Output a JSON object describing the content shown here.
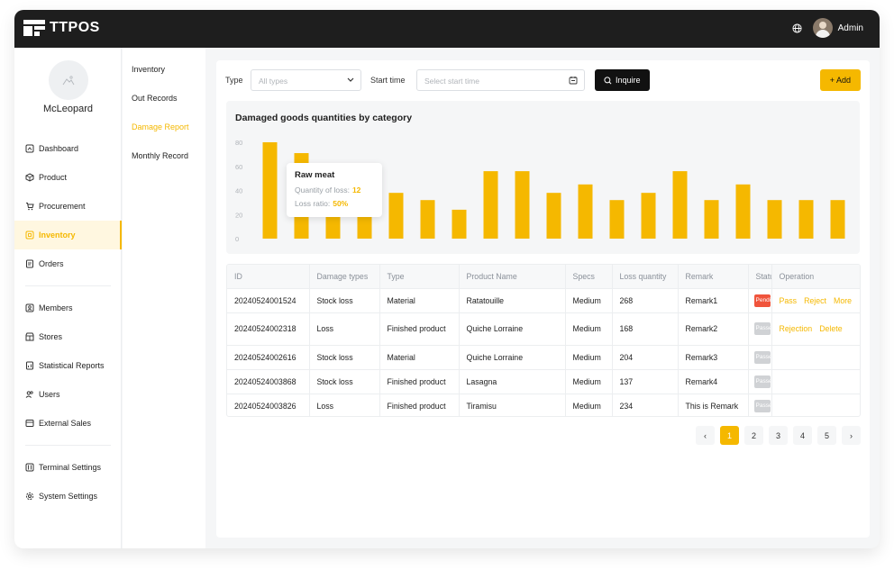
{
  "app": {
    "name": "TTPOS",
    "user": "Admin"
  },
  "colors": {
    "accent": "#f5b800",
    "dark": "#1e1e1e",
    "pending": "#f0543c",
    "muted_chip": "#d0d2d5"
  },
  "store": {
    "name": "McLeopard"
  },
  "sidebar": {
    "groups": [
      [
        {
          "label": "Dashboard",
          "icon": "dashboard-icon",
          "active": false
        },
        {
          "label": "Product",
          "icon": "cube-icon",
          "active": false
        },
        {
          "label": "Procurement",
          "icon": "cart-icon",
          "active": false
        },
        {
          "label": "Inventory",
          "icon": "inventory-icon",
          "active": true
        },
        {
          "label": "Orders",
          "icon": "orders-icon",
          "active": false
        }
      ],
      [
        {
          "label": "Members",
          "icon": "members-icon",
          "active": false
        },
        {
          "label": "Stores",
          "icon": "store-icon",
          "active": false
        },
        {
          "label": "Statistical Reports",
          "icon": "report-icon",
          "active": false
        },
        {
          "label": "Users",
          "icon": "users-icon",
          "active": false
        },
        {
          "label": "External Sales",
          "icon": "sales-icon",
          "active": false
        }
      ],
      [
        {
          "label": "Terminal Settings",
          "icon": "terminal-settings-icon",
          "active": false
        },
        {
          "label": "System Settings",
          "icon": "gear-icon",
          "active": false
        }
      ]
    ]
  },
  "subnav": {
    "items": [
      {
        "label": "Inventory",
        "active": false
      },
      {
        "label": "Out Records",
        "active": false
      },
      {
        "label": "Damage Report",
        "active": true
      },
      {
        "label": "Monthly Record",
        "active": false
      }
    ]
  },
  "filter": {
    "type_label": "Type",
    "type_placeholder": "All types",
    "start_label": "Start time",
    "start_placeholder": "Select start time",
    "inquire_label": "Inquire",
    "add_label": "+ Add"
  },
  "chart_data": {
    "type": "bar",
    "title": "Damaged goods quantities by category",
    "xlabel": "",
    "ylabel": "",
    "ylim": [
      0,
      80
    ],
    "yticks": [
      0,
      20,
      40,
      60,
      80
    ],
    "grid": false,
    "categories": [
      "",
      "",
      "",
      "",
      "",
      "",
      "",
      "",
      "",
      "",
      "",
      "",
      "",
      "",
      "",
      "",
      "",
      "",
      "",
      "",
      ""
    ],
    "values": [
      80,
      71,
      35,
      33,
      38,
      32,
      24,
      56,
      56,
      38,
      45,
      32,
      38,
      56,
      32,
      45,
      32,
      32,
      32,
      32,
      32
    ],
    "tooltip": {
      "title": "Raw meat",
      "qty_label": "Quantity of loss:",
      "qty_value": "12",
      "ratio_label": "Loss ratio:",
      "ratio_value": "50%"
    }
  },
  "table": {
    "columns": [
      "ID",
      "Damage types",
      "Type",
      "Product Name",
      "Specs",
      "Loss quantity",
      "Remark",
      "Status",
      "Operation"
    ],
    "rows": [
      {
        "id": "20240524001524",
        "damage": "Stock loss",
        "type": "Material",
        "product": "Ratatouille",
        "specs": "Medium",
        "qty": "268",
        "remark": "Remark1",
        "status": "Pending",
        "status_color": "#f0543c",
        "ops": [
          "Pass",
          "Reject",
          "More"
        ]
      },
      {
        "id": "20240524002318",
        "damage": "Loss",
        "type": "Finished product",
        "product": "Quiche Lorraine",
        "specs": "Medium",
        "qty": "168",
        "remark": "Remark2",
        "status": "Passed",
        "status_color": "#d0d2d5",
        "ops": [
          "Rejection",
          "Delete"
        ]
      },
      {
        "id": "20240524002616",
        "damage": "Stock loss",
        "type": "Material",
        "product": "Quiche Lorraine",
        "specs": "Medium",
        "qty": "204",
        "remark": "Remark3",
        "status": "Passed",
        "status_color": "#d0d2d5",
        "ops": []
      },
      {
        "id": "20240524003868",
        "damage": "Stock loss",
        "type": "Finished product",
        "product": "Lasagna",
        "specs": "Medium",
        "qty": "137",
        "remark": "Remark4",
        "status": "Passed",
        "status_color": "#d0d2d5",
        "ops": []
      },
      {
        "id": "20240524003826",
        "damage": "Loss",
        "type": "Finished product",
        "product": "Tiramisu",
        "specs": "Medium",
        "qty": "234",
        "remark": "This is Remark",
        "status": "Passed",
        "status_color": "#d0d2d5",
        "ops": []
      }
    ]
  },
  "pagination": {
    "prev": "‹",
    "next": "›",
    "pages": [
      "1",
      "2",
      "3",
      "4",
      "5"
    ],
    "current": "1"
  }
}
